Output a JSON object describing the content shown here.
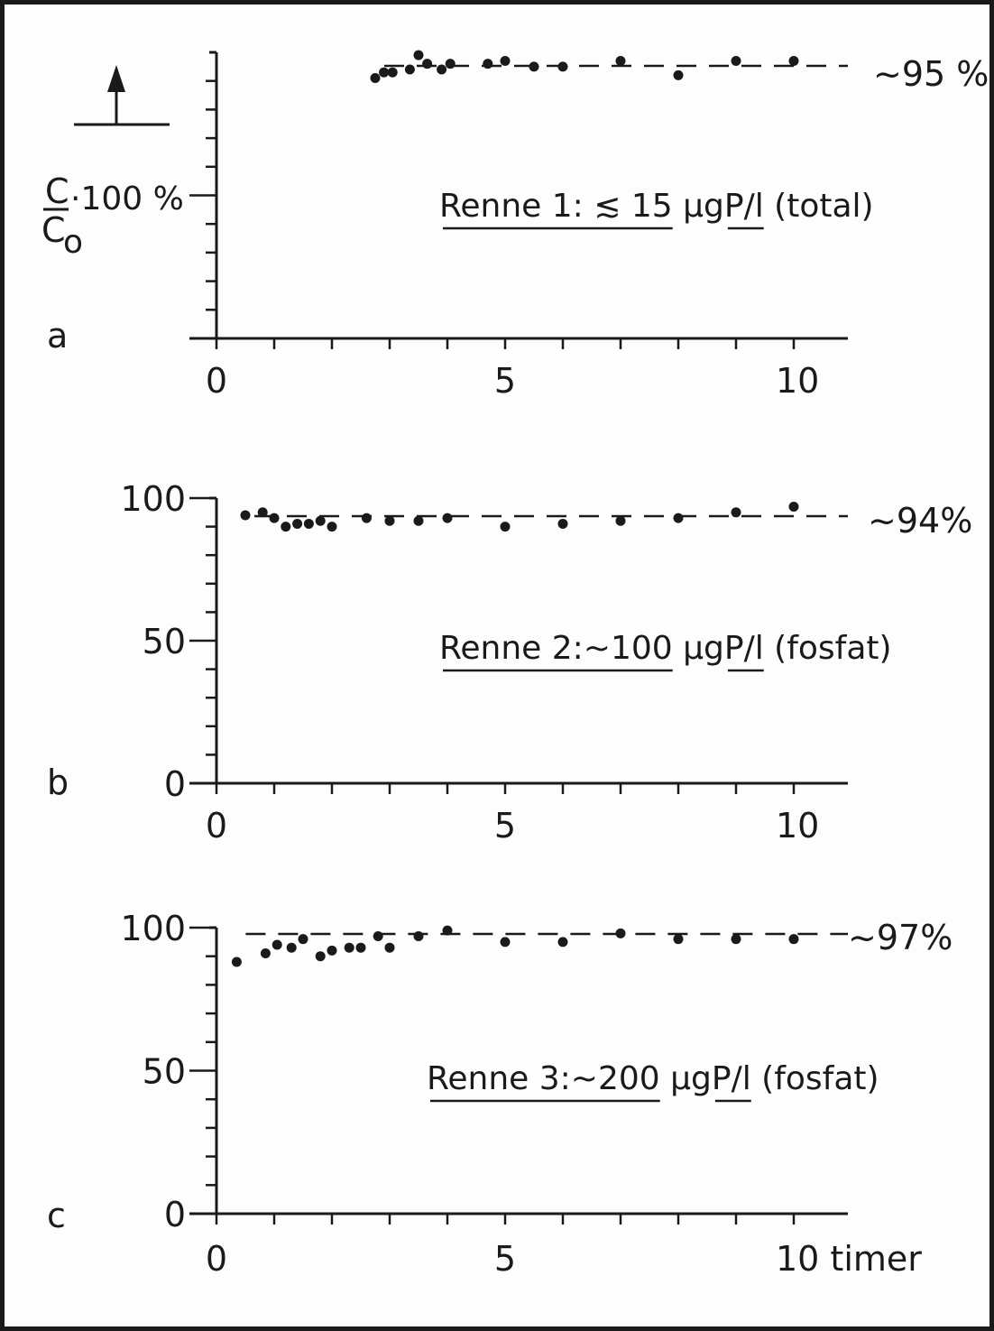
{
  "chart_data": [
    {
      "type": "scatter",
      "panel_letter": "a",
      "ylabel_fraction_num": "C",
      "ylabel_fraction_den": "C",
      "ylabel_fraction_den_sub": "o",
      "ylabel_suffix": "·100 %",
      "x_ticks": [
        "0",
        "5",
        "10"
      ],
      "y_ticks": [],
      "xlim": [
        0,
        11
      ],
      "ylim": [
        0,
        100
      ],
      "plateau_label": "~95 %",
      "plateau_value": 95,
      "annotation": {
        "part1": "Renne 1:  ≲ 15",
        "part2": "μg",
        "part3": "P/l",
        "part4": "(total)"
      },
      "x": [
        2.75,
        2.9,
        3.05,
        3.35,
        3.5,
        3.65,
        3.9,
        4.05,
        4.7,
        5.0,
        5.5,
        6.0,
        7.0,
        8.0,
        9.0,
        10.0
      ],
      "y": [
        91,
        93,
        93,
        94,
        99,
        96,
        94,
        96,
        96,
        97,
        95,
        95,
        97,
        92,
        97,
        97
      ]
    },
    {
      "type": "scatter",
      "panel_letter": "b",
      "x_ticks": [
        "0",
        "5",
        "10"
      ],
      "y_ticks": [
        "0",
        "50",
        "100"
      ],
      "xlim": [
        0,
        11
      ],
      "ylim": [
        0,
        100
      ],
      "plateau_label": "~94%",
      "plateau_value": 94,
      "annotation": {
        "part1": "Renne 2:~100",
        "part2": "μg",
        "part3": "P/l",
        "part4": "(fosfat)"
      },
      "x": [
        0.5,
        0.8,
        1.0,
        1.2,
        1.4,
        1.6,
        1.8,
        2.0,
        2.6,
        3.0,
        3.5,
        4.0,
        5.0,
        6.0,
        7.0,
        8.0,
        9.0,
        10.0
      ],
      "y": [
        94,
        95,
        93,
        90,
        91,
        91,
        92,
        90,
        93,
        92,
        92,
        93,
        90,
        91,
        92,
        93,
        95,
        97
      ]
    },
    {
      "type": "scatter",
      "panel_letter": "c",
      "x_ticks": [
        "0",
        "5",
        "10 timer"
      ],
      "y_ticks": [
        "0",
        "50",
        "100"
      ],
      "xlim": [
        0,
        11
      ],
      "ylim": [
        0,
        100
      ],
      "plateau_label": "~97%",
      "plateau_value": 97,
      "annotation": {
        "part1": "Renne 3:~200",
        "part2": "μg",
        "part3": "P/l",
        "part4": "(fosfat)"
      },
      "x": [
        0.35,
        0.85,
        1.05,
        1.3,
        1.5,
        1.8,
        2.0,
        2.3,
        2.5,
        2.8,
        3.0,
        3.5,
        4.0,
        5.0,
        6.0,
        7.0,
        8.0,
        9.0,
        10.0
      ],
      "y": [
        88,
        91,
        94,
        93,
        96,
        90,
        92,
        93,
        93,
        97,
        93,
        97,
        99,
        95,
        95,
        98,
        96,
        96,
        96
      ]
    }
  ]
}
